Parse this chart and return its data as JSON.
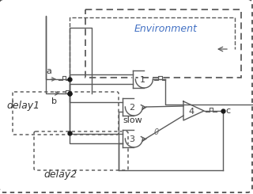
{
  "background": "#ffffff",
  "env_label": "Environment",
  "env_label_color": "#4472c4",
  "labels": {
    "a": "a",
    "b": "b",
    "c": "c",
    "delay1": "delay1",
    "delay2": "delay2",
    "slow": "slow",
    "zero": "0",
    "gate1": "1",
    "gate2": "2",
    "gate3": "3",
    "gate4": "4"
  },
  "line_color": "#5a5a5a",
  "dot_color": "#1a1a1a",
  "figsize": [
    3.2,
    2.45
  ],
  "dpi": 100
}
